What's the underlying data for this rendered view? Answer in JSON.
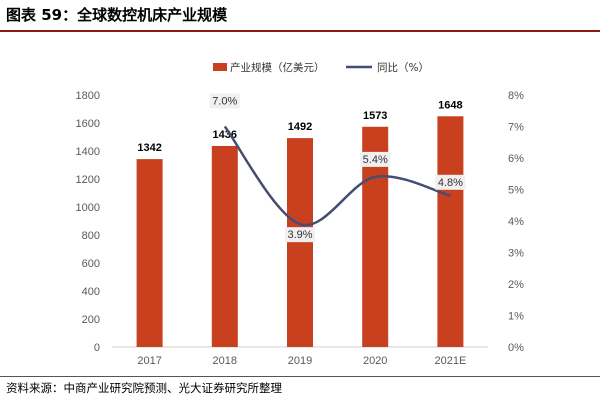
{
  "figure": {
    "title": "图表 59：全球数控机床产业规模",
    "source": "资料来源：中商产业研究院预测、光大证券研究所整理"
  },
  "colors": {
    "bar": "#c9401f",
    "line": "#464d73",
    "rule": "#8a1b14",
    "label_bg": "#f0f0f0"
  },
  "chart_data": {
    "type": "bar",
    "categories": [
      "2017",
      "2018",
      "2019",
      "2020",
      "2021E"
    ],
    "series": [
      {
        "name": "产业规模（亿美元）",
        "type": "bar",
        "axis": "left",
        "values": [
          1342,
          1436,
          1492,
          1573,
          1648
        ]
      },
      {
        "name": "同比（%）",
        "type": "line",
        "axis": "right",
        "values": [
          null,
          7.0,
          3.9,
          5.4,
          4.8
        ],
        "labels": [
          "",
          "7.0%",
          "3.9%",
          "5.4%",
          "4.8%"
        ]
      }
    ],
    "y_left": {
      "min": 0,
      "max": 1800,
      "ticks": [
        "0",
        "200",
        "400",
        "600",
        "800",
        "1000",
        "1200",
        "1400",
        "1600",
        "1800"
      ]
    },
    "y_right": {
      "min": 0,
      "max": 8,
      "ticks": [
        "0%",
        "1%",
        "2%",
        "3%",
        "4%",
        "5%",
        "6%",
        "7%",
        "8%"
      ]
    },
    "grid": false,
    "legend": "top-center"
  }
}
